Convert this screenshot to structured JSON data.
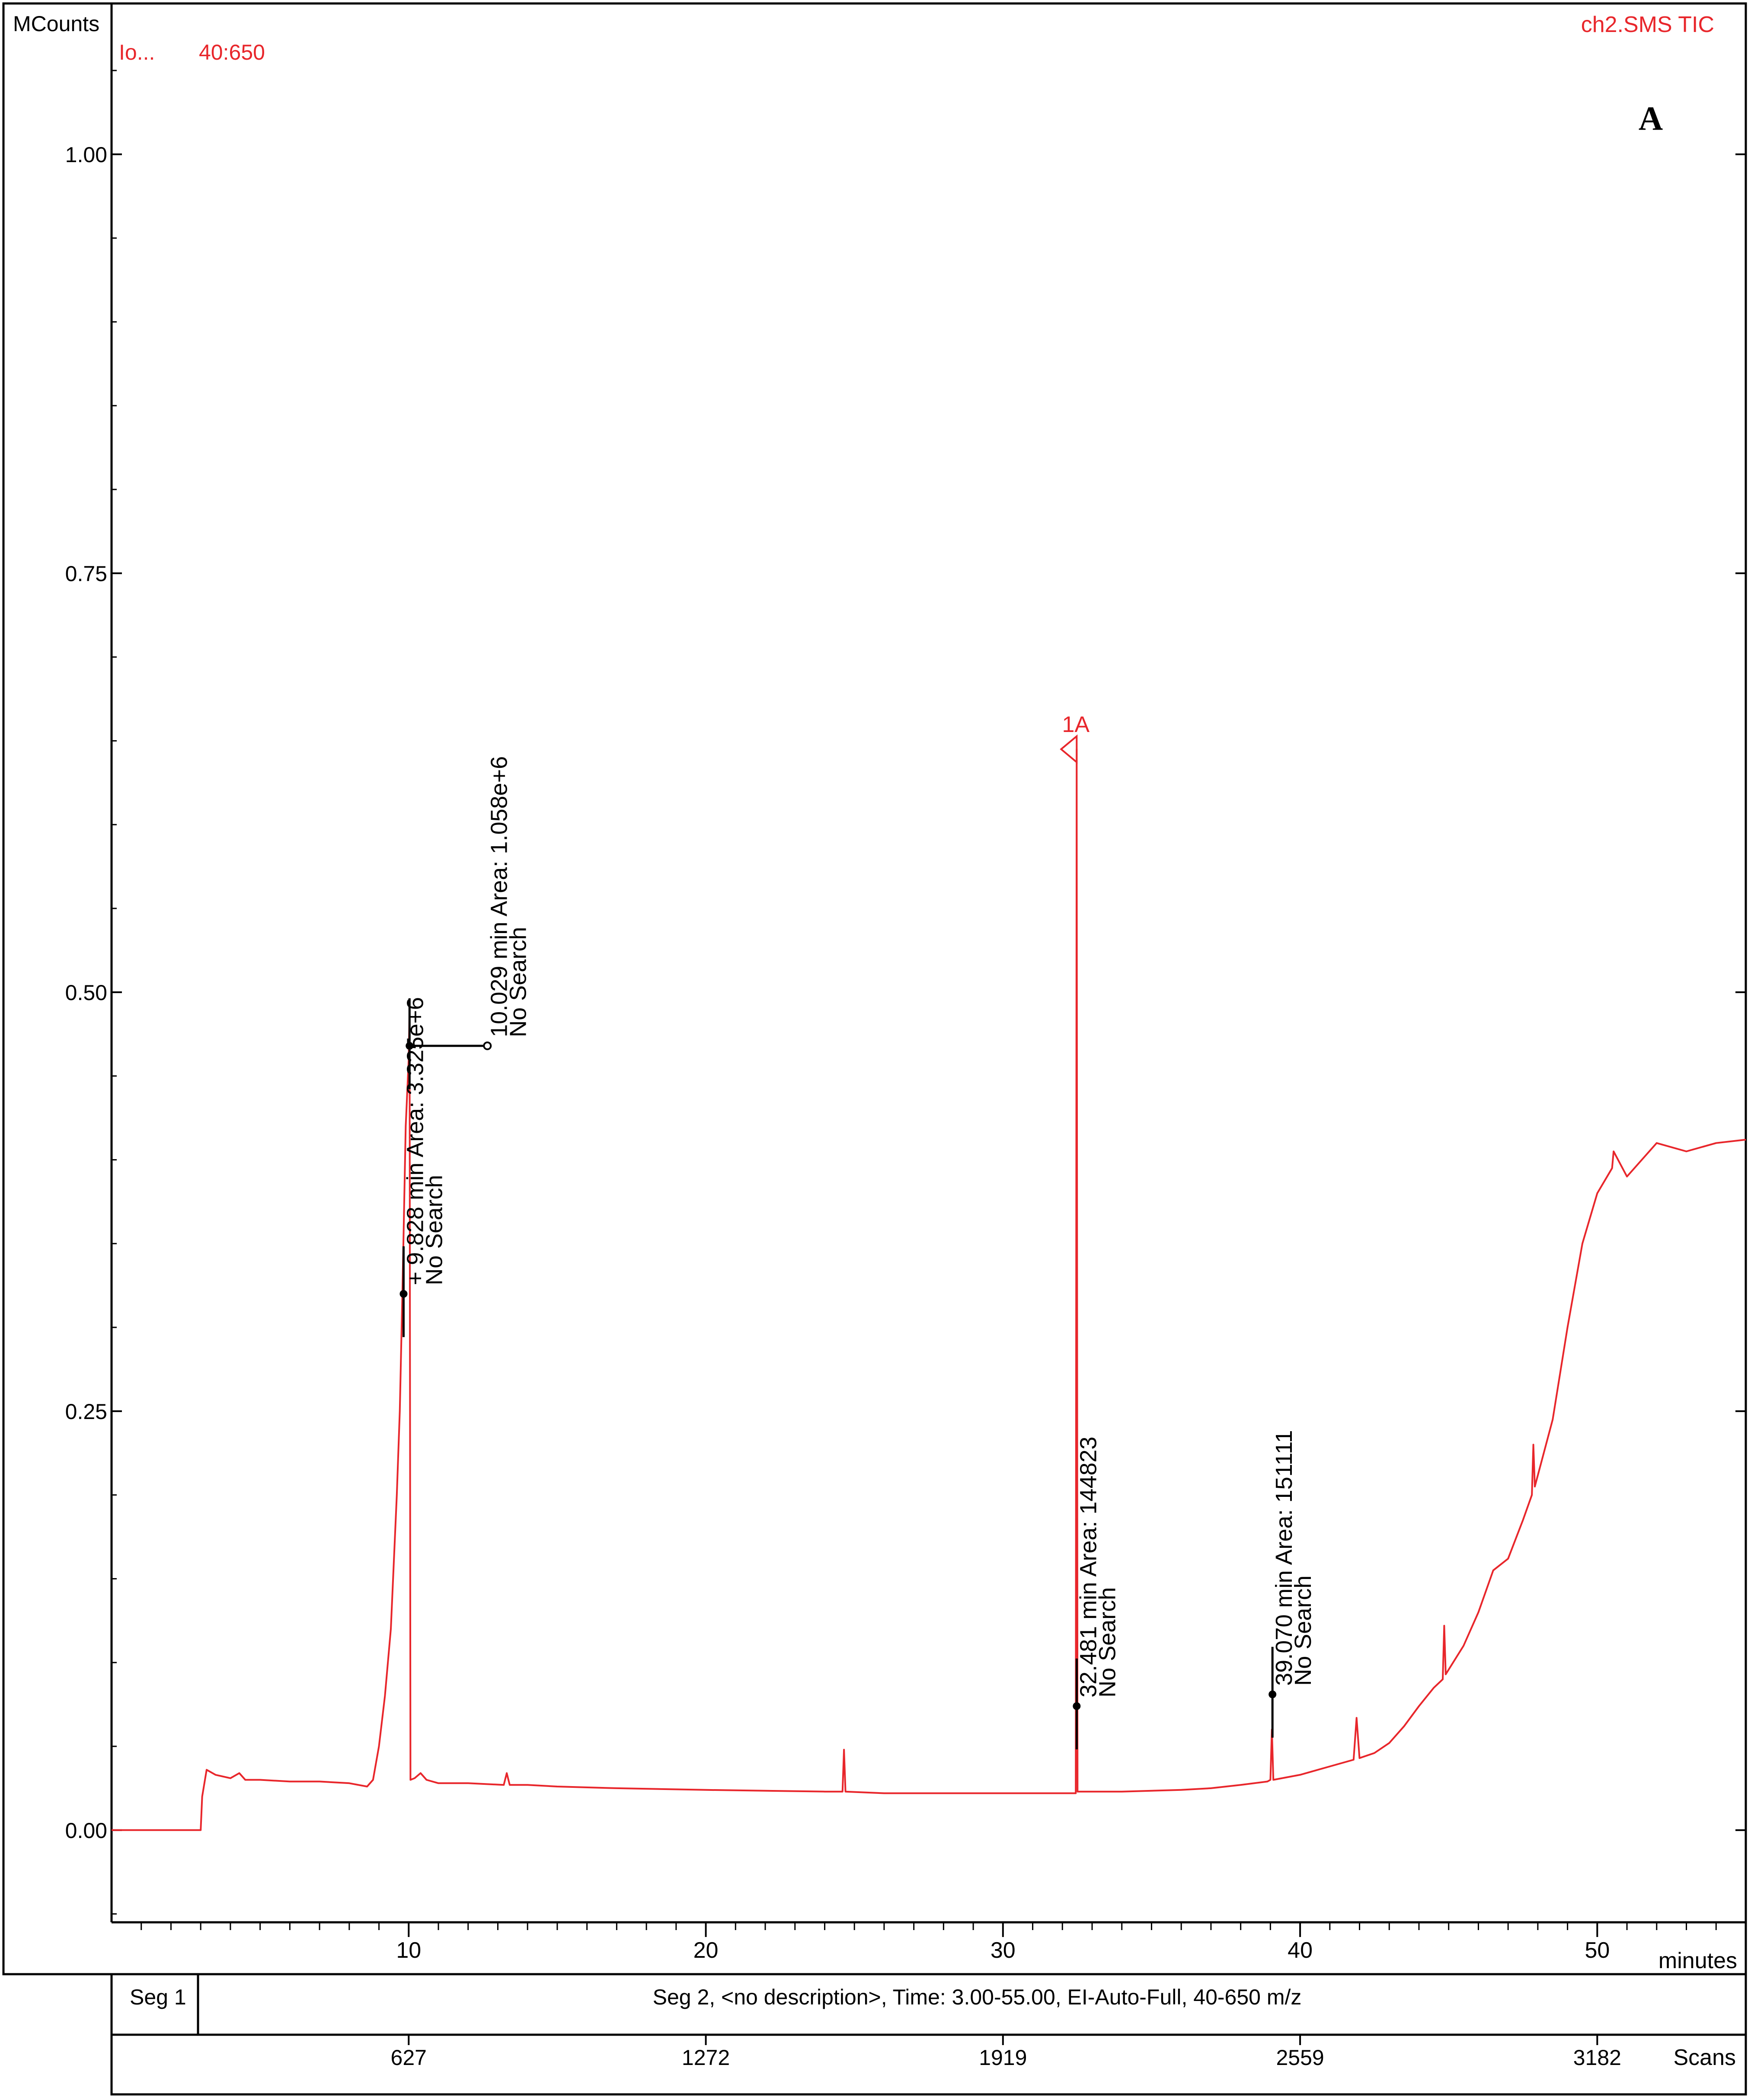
{
  "panel_label": "A",
  "header": {
    "y_unit": "MCounts",
    "ion_label": "Io...",
    "ion_range": "40:650",
    "trace_name": "ch2.SMS TIC"
  },
  "x_unit": "minutes",
  "scan_label": "Scans",
  "segments": {
    "seg1": "Seg 1",
    "seg2": "Seg 2, <no description>, Time:  3.00-55.00, EI-Auto-Full, 40-650 m/z"
  },
  "scan_ticks": [
    {
      "scan": "627",
      "time": 10.0
    },
    {
      "scan": "1272",
      "time": 20.0
    },
    {
      "scan": "1919",
      "time": 30.0
    },
    {
      "scan": "2559",
      "time": 40.0
    },
    {
      "scan": "3182",
      "time": 50.0
    }
  ],
  "colors": {
    "trace": "#e8262b",
    "annotation": "#000000",
    "axis": "#000000",
    "text_red": "#e8262b"
  },
  "chart_data": {
    "type": "line",
    "xlim": [
      0,
      55
    ],
    "ylim": [
      -0.055,
      1.09
    ],
    "x_ticks": [
      10,
      20,
      30,
      40,
      50
    ],
    "y_ticks": [
      0.0,
      0.25,
      0.5,
      0.75,
      1.0
    ],
    "y_tick_labels": [
      "0.00",
      "0.25",
      "0.50",
      "0.75",
      "1.00"
    ],
    "grid": false,
    "series": [
      {
        "color": "#e8262b",
        "points": [
          [
            0.0,
            0.0
          ],
          [
            3.0,
            0.0
          ],
          [
            3.05,
            0.02
          ],
          [
            3.2,
            0.036
          ],
          [
            3.5,
            0.033
          ],
          [
            4.0,
            0.031
          ],
          [
            4.3,
            0.034
          ],
          [
            4.5,
            0.03
          ],
          [
            5.0,
            0.03
          ],
          [
            6.0,
            0.029
          ],
          [
            7.0,
            0.029
          ],
          [
            8.0,
            0.028
          ],
          [
            8.6,
            0.026
          ],
          [
            8.8,
            0.03
          ],
          [
            9.0,
            0.05
          ],
          [
            9.2,
            0.08
          ],
          [
            9.4,
            0.12
          ],
          [
            9.5,
            0.16
          ],
          [
            9.6,
            0.2
          ],
          [
            9.7,
            0.25
          ],
          [
            9.8,
            0.33
          ],
          [
            9.9,
            0.42
          ],
          [
            10.0,
            0.46
          ],
          [
            10.03,
            0.49
          ],
          [
            10.06,
            0.03
          ],
          [
            10.2,
            0.031
          ],
          [
            10.4,
            0.034
          ],
          [
            10.6,
            0.03
          ],
          [
            11.0,
            0.028
          ],
          [
            12.0,
            0.028
          ],
          [
            13.2,
            0.027
          ],
          [
            13.3,
            0.034
          ],
          [
            13.4,
            0.027
          ],
          [
            14.0,
            0.027
          ],
          [
            15.0,
            0.026
          ],
          [
            17.0,
            0.025
          ],
          [
            20.0,
            0.024
          ],
          [
            24.0,
            0.023
          ],
          [
            24.6,
            0.023
          ],
          [
            24.65,
            0.048
          ],
          [
            24.7,
            0.023
          ],
          [
            26.0,
            0.022
          ],
          [
            28.0,
            0.022
          ],
          [
            30.0,
            0.022
          ],
          [
            32.0,
            0.022
          ],
          [
            32.45,
            0.022
          ],
          [
            32.48,
            0.645
          ],
          [
            32.51,
            0.023
          ],
          [
            34.0,
            0.023
          ],
          [
            36.0,
            0.024
          ],
          [
            37.0,
            0.025
          ],
          [
            38.0,
            0.027
          ],
          [
            38.9,
            0.029
          ],
          [
            39.0,
            0.03
          ],
          [
            39.05,
            0.06
          ],
          [
            39.1,
            0.03
          ],
          [
            40.0,
            0.033
          ],
          [
            41.0,
            0.038
          ],
          [
            41.8,
            0.042
          ],
          [
            41.9,
            0.067
          ],
          [
            42.0,
            0.043
          ],
          [
            42.5,
            0.046
          ],
          [
            43.0,
            0.052
          ],
          [
            43.5,
            0.062
          ],
          [
            44.0,
            0.074
          ],
          [
            44.5,
            0.085
          ],
          [
            44.8,
            0.09
          ],
          [
            44.85,
            0.122
          ],
          [
            44.9,
            0.093
          ],
          [
            45.5,
            0.11
          ],
          [
            46.0,
            0.13
          ],
          [
            46.5,
            0.155
          ],
          [
            47.0,
            0.162
          ],
          [
            47.5,
            0.185
          ],
          [
            47.8,
            0.2
          ],
          [
            47.85,
            0.23
          ],
          [
            47.9,
            0.205
          ],
          [
            48.5,
            0.245
          ],
          [
            49.0,
            0.3
          ],
          [
            49.5,
            0.35
          ],
          [
            50.0,
            0.38
          ],
          [
            50.5,
            0.395
          ],
          [
            50.55,
            0.405
          ],
          [
            51.0,
            0.39
          ],
          [
            52.0,
            0.41
          ],
          [
            53.0,
            0.405
          ],
          [
            54.0,
            0.41
          ],
          [
            55.0,
            0.412
          ]
        ]
      }
    ],
    "annotations": [
      {
        "x": 9.828,
        "y": 0.32,
        "line1": "+ 9.828 min  Area: 3.325e+6",
        "line2": "No Search"
      },
      {
        "x": 10.029,
        "y": 0.468,
        "line1": "10.029 min  Area: 1.058e+6",
        "line2": "No Search"
      },
      {
        "x": 32.481,
        "y": 0.074,
        "line1": "32.481 min  Area: 144823",
        "line2": "No Search"
      },
      {
        "x": 39.07,
        "y": 0.081,
        "line1": "39.070 min  Area: 151111",
        "line2": "No Search"
      }
    ],
    "peak_marker": {
      "x": 32.481,
      "y": 0.645,
      "label": "1A"
    }
  }
}
